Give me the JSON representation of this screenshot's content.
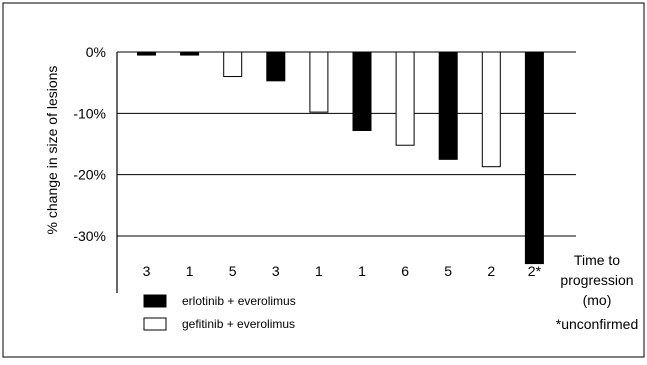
{
  "chart_data": {
    "type": "bar",
    "ylabel": "% change in size of lesions",
    "ylim": [
      -30,
      0
    ],
    "y_ticks": [
      {
        "value": 0,
        "label": "0%"
      },
      {
        "value": -10,
        "label": "-10%"
      },
      {
        "value": -20,
        "label": "-20%"
      },
      {
        "value": -30,
        "label": "-30%"
      }
    ],
    "categories": [
      "3",
      "1",
      "5",
      "3",
      "1",
      "1",
      "6",
      "5",
      "2",
      "2*"
    ],
    "values": [
      -0.5,
      -0.5,
      -4,
      -4.7,
      -9.8,
      -12.8,
      -15.2,
      -17.5,
      -18.7,
      -34.5
    ],
    "groups": [
      "erlotinib + everolimus",
      "erlotinib + everolimus",
      "gefitinib + everolimus",
      "erlotinib + everolimus",
      "gefitinib + everolimus",
      "erlotinib + everolimus",
      "gefitinib + everolimus",
      "erlotinib + everolimus",
      "gefitinib + everolimus",
      "erlotinib + everolimus"
    ],
    "legend": [
      {
        "name": "erlotinib + everolimus",
        "color": "#000000"
      },
      {
        "name": "gefitinib + everolimus",
        "color": "#ffffff"
      }
    ],
    "x_title_lines": [
      "Time to",
      "progression",
      "(mo)"
    ],
    "footnote": "*unconfirmed",
    "gridlines": true
  }
}
